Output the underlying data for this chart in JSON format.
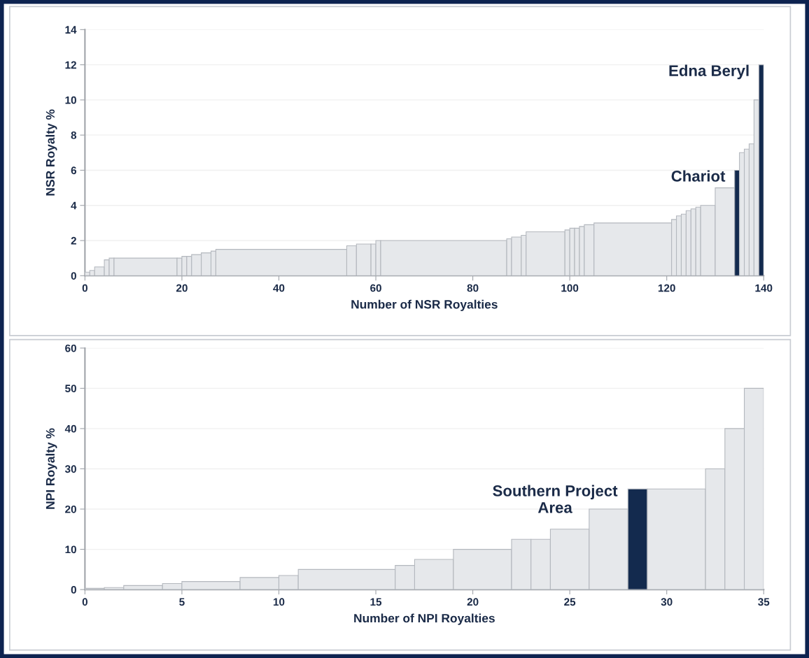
{
  "chart_data": [
    {
      "type": "histogram",
      "xlabel": "Number of NSR Royalties",
      "ylabel": "NSR Royalty %",
      "bins": [
        0,
        1,
        2,
        4,
        5,
        6,
        19,
        20,
        21,
        22,
        24,
        26,
        27,
        54,
        56,
        59,
        60,
        61,
        87,
        88,
        90,
        91,
        99,
        100,
        101,
        102,
        103,
        105,
        121,
        122,
        123,
        124,
        125,
        126,
        127,
        130,
        134,
        135,
        136,
        137,
        138,
        139,
        140
      ],
      "values": [
        0.2,
        0.3,
        0.5,
        0.9,
        1.0,
        1.0,
        1.0,
        1.1,
        1.1,
        1.2,
        1.3,
        1.4,
        1.5,
        1.7,
        1.8,
        1.8,
        2.0,
        2.0,
        2.1,
        2.2,
        2.3,
        2.5,
        2.6,
        2.7,
        2.7,
        2.8,
        2.9,
        3.0,
        3.2,
        3.4,
        3.5,
        3.7,
        3.8,
        3.9,
        4.0,
        5.0,
        6.0,
        7.0,
        7.2,
        7.5,
        10,
        12
      ],
      "colors": [
        "#e6e8eb",
        "#e6e8eb",
        "#e6e8eb",
        "#e6e8eb",
        "#e6e8eb",
        "#e6e8eb",
        "#e6e8eb",
        "#e6e8eb",
        "#e6e8eb",
        "#e6e8eb",
        "#e6e8eb",
        "#e6e8eb",
        "#e6e8eb",
        "#e6e8eb",
        "#e6e8eb",
        "#e6e8eb",
        "#e6e8eb",
        "#e6e8eb",
        "#e6e8eb",
        "#e6e8eb",
        "#e6e8eb",
        "#e6e8eb",
        "#e6e8eb",
        "#e6e8eb",
        "#e6e8eb",
        "#e6e8eb",
        "#e6e8eb",
        "#e6e8eb",
        "#e6e8eb",
        "#e6e8eb",
        "#e6e8eb",
        "#e6e8eb",
        "#e6e8eb",
        "#e6e8eb",
        "#e6e8eb",
        "#e6e8eb",
        "#132a4e",
        "#e6e8eb",
        "#e6e8eb",
        "#e6e8eb",
        "#e6e8eb",
        "#132a4e"
      ],
      "xlim": [
        0,
        140
      ],
      "xticks": [
        0,
        20,
        40,
        60,
        80,
        100,
        120,
        140
      ],
      "ylim": [
        0,
        14
      ],
      "yticks": [
        0,
        2,
        4,
        6,
        8,
        10,
        12,
        14
      ],
      "grid": "y",
      "annotations": [
        {
          "text": "Edna Beryl",
          "x": 139.5,
          "y": 12
        },
        {
          "text": "Chariot",
          "x": 134.5,
          "y": 6
        }
      ]
    },
    {
      "type": "histogram",
      "xlabel": "Number of NPI Royalties",
      "ylabel": "NPI Royalty %",
      "bins": [
        0,
        1,
        2,
        4,
        5,
        8,
        10,
        11,
        16,
        17,
        19,
        22,
        23,
        24,
        26,
        28,
        29,
        32,
        33,
        34,
        35
      ],
      "values": [
        0.3,
        0.5,
        1,
        1.5,
        2,
        3,
        3.5,
        5,
        6,
        7.5,
        10,
        12.5,
        12.5,
        15,
        20,
        25,
        25,
        30,
        40,
        50
      ],
      "colors": [
        "#e6e8eb",
        "#e6e8eb",
        "#e6e8eb",
        "#e6e8eb",
        "#e6e8eb",
        "#e6e8eb",
        "#e6e8eb",
        "#e6e8eb",
        "#e6e8eb",
        "#e6e8eb",
        "#e6e8eb",
        "#e6e8eb",
        "#e6e8eb",
        "#e6e8eb",
        "#e6e8eb",
        "#132a4e",
        "#e6e8eb",
        "#e6e8eb",
        "#e6e8eb",
        "#e6e8eb"
      ],
      "xlim": [
        0,
        35
      ],
      "xticks": [
        0,
        5,
        10,
        15,
        20,
        25,
        30,
        35
      ],
      "ylim": [
        0,
        60
      ],
      "yticks": [
        0,
        10,
        20,
        30,
        40,
        50,
        60
      ],
      "grid": "y",
      "annotations": [
        {
          "text": "Southern Project\nArea",
          "x": 28.5,
          "y": 25
        }
      ]
    }
  ]
}
